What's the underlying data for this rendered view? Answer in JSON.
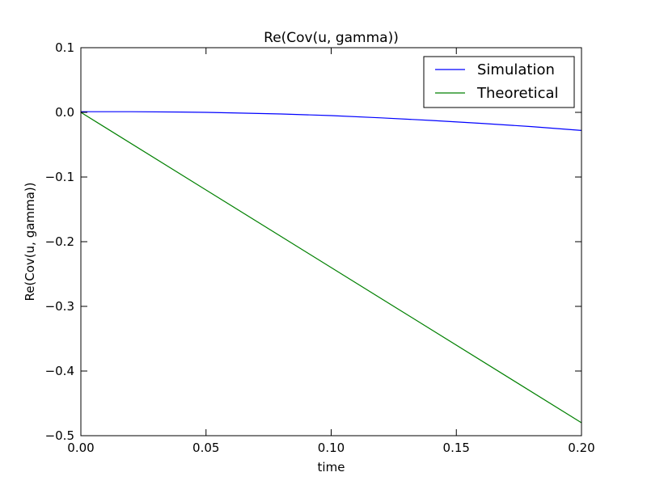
{
  "chart_data": {
    "type": "line",
    "title": "Re(Cov(u, gamma))",
    "xlabel": "time",
    "ylabel": "Re(Cov(u, gamma))",
    "xlim": [
      0.0,
      0.2
    ],
    "ylim": [
      -0.5,
      0.1
    ],
    "xticks": [
      0.0,
      0.05,
      0.1,
      0.15,
      0.2
    ],
    "xtick_labels": [
      "0.00",
      "0.05",
      "0.10",
      "0.15",
      "0.20"
    ],
    "yticks": [
      0.1,
      0.0,
      -0.1,
      -0.2,
      -0.3,
      -0.4,
      -0.5
    ],
    "ytick_labels": [
      "0.1",
      "0.0",
      "−0.1",
      "−0.2",
      "−0.3",
      "−0.4",
      "−0.5"
    ],
    "grid": false,
    "legend_position": "top-right",
    "series": [
      {
        "name": "Simulation",
        "color": "#0000ff",
        "x": [
          0.0,
          0.02,
          0.04,
          0.05,
          0.06,
          0.08,
          0.1,
          0.12,
          0.14,
          0.16,
          0.18,
          0.2
        ],
        "y": [
          0.001,
          0.001,
          0.0005,
          0.0,
          -0.0008,
          -0.0025,
          -0.005,
          -0.0085,
          -0.0125,
          -0.017,
          -0.022,
          -0.028
        ]
      },
      {
        "name": "Theoretical",
        "color": "#008000",
        "x": [
          0.0,
          0.2
        ],
        "y": [
          0.0,
          -0.48
        ]
      }
    ]
  }
}
